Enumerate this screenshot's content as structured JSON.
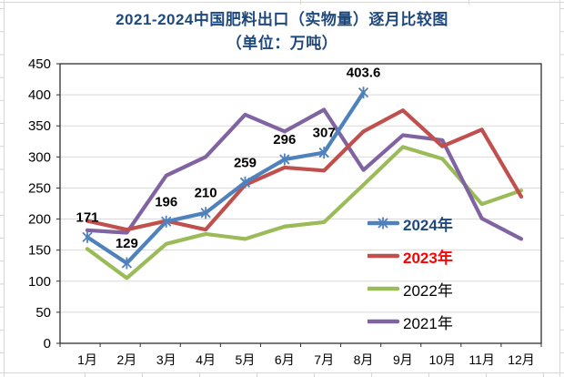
{
  "title": {
    "line1": "2021-2024中国肥料出口（实物量）逐月比较图",
    "line2": "（单位：万吨）"
  },
  "chart_data": {
    "type": "line",
    "title": "2021-2024中国肥料出口（实物量）逐月比较图",
    "subtitle": "（单位：万吨）",
    "unit": "万吨",
    "categories": [
      "1月",
      "2月",
      "3月",
      "4月",
      "5月",
      "6月",
      "7月",
      "8月",
      "9月",
      "10月",
      "11月",
      "12月"
    ],
    "ylim": [
      0,
      450
    ],
    "yticks": [
      0,
      50,
      100,
      150,
      200,
      250,
      300,
      350,
      400,
      450
    ],
    "grid": true,
    "legend_position": "inside-right",
    "series": [
      {
        "name": "2024年",
        "color": "#4F81BD",
        "marker": "asterisk",
        "show_data_labels": true,
        "legend_text_color": "#1F497D",
        "legend_bold": true,
        "values": [
          171,
          129,
          196,
          210,
          259,
          296,
          307,
          403.6
        ],
        "data_labels": [
          "171",
          "129",
          "196",
          "210",
          "259",
          "296",
          "307",
          "403.6"
        ]
      },
      {
        "name": "2023年",
        "color": "#C0504D",
        "marker": "none",
        "show_data_labels": false,
        "legend_text_color": "#FF0000",
        "legend_bold": true,
        "values": [
          197,
          183,
          197,
          183,
          255,
          283,
          278,
          341,
          375,
          317,
          344,
          236
        ]
      },
      {
        "name": "2022年",
        "color": "#9BBB59",
        "marker": "none",
        "show_data_labels": false,
        "legend_text_color": "#000000",
        "legend_bold": false,
        "values": [
          152,
          105,
          160,
          176,
          168,
          188,
          195,
          255,
          316,
          297,
          224,
          246
        ]
      },
      {
        "name": "2021年",
        "color": "#8064A2",
        "marker": "none",
        "show_data_labels": false,
        "legend_text_color": "#000000",
        "legend_bold": false,
        "values": [
          182,
          178,
          270,
          300,
          368,
          341,
          376,
          279,
          335,
          327,
          201,
          168
        ]
      }
    ]
  }
}
